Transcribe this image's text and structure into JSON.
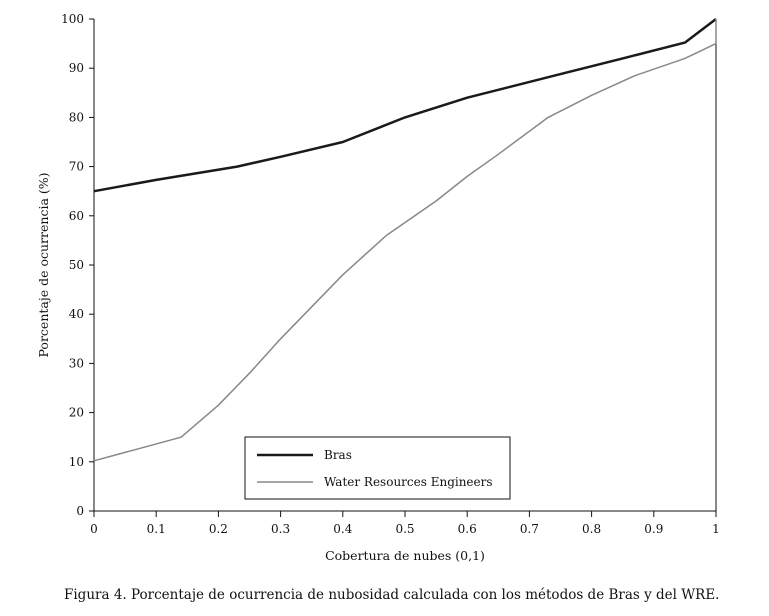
{
  "chart_data": {
    "type": "line",
    "xlabel": "Cobertura de nubes (0,1)",
    "ylabel": "Porcentaje de ocurrencia (%)",
    "xlim": [
      0,
      1
    ],
    "ylim": [
      0,
      100
    ],
    "x_ticks": [
      "0",
      "0.1",
      "0.2",
      "0.3",
      "0.4",
      "0.5",
      "0.6",
      "0.7",
      "0.8",
      "0.9",
      "1"
    ],
    "y_ticks": [
      "0",
      "10",
      "20",
      "30",
      "40",
      "50",
      "60",
      "70",
      "80",
      "90",
      "100"
    ],
    "grid": false,
    "legend_position": "bottom-center",
    "series": [
      {
        "name": "Bras",
        "color": "#1a1a1a",
        "x": [
          0,
          0.1,
          0.23,
          0.3,
          0.4,
          0.5,
          0.6,
          0.75,
          0.85,
          0.95,
          1.0
        ],
        "y": [
          65,
          67.3,
          70,
          72,
          75,
          80,
          84,
          88.8,
          92,
          95.2,
          100
        ]
      },
      {
        "name": "Water Resources Engineers",
        "color": "#888888",
        "x": [
          0,
          0.14,
          0.2,
          0.25,
          0.3,
          0.35,
          0.4,
          0.47,
          0.55,
          0.6,
          0.65,
          0.73,
          0.8,
          0.87,
          0.95,
          1.0,
          1.0
        ],
        "y": [
          10.2,
          15,
          21.5,
          28,
          35,
          41.5,
          48,
          56,
          63,
          68,
          72.5,
          80,
          84.5,
          88.5,
          92,
          95,
          100
        ]
      }
    ]
  },
  "caption": "Figura 4. Porcentaje de ocurrencia de nubosidad calculada con los métodos de Bras y del WRE."
}
